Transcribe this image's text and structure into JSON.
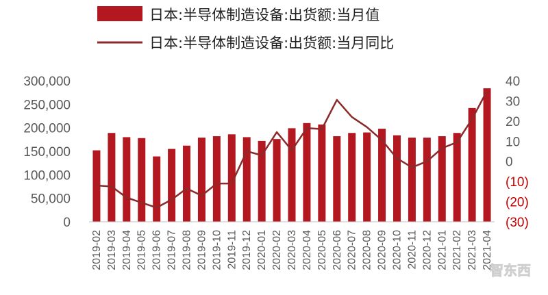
{
  "chart_data": {
    "type": "bar+line",
    "title": "",
    "legend": [
      {
        "label": "日本:半导体制造设备:出货额:当月值",
        "kind": "bar"
      },
      {
        "label": "日本:半导体制造设备:出货额:当月同比",
        "kind": "line"
      }
    ],
    "legend_position": "top",
    "categories": [
      "2019-02",
      "2019-03",
      "2019-04",
      "2019-05",
      "2019-06",
      "2019-07",
      "2019-08",
      "2019-09",
      "2019-10",
      "2019-11",
      "2019-12",
      "2020-01",
      "2020-02",
      "2020-03",
      "2020-04",
      "2020-05",
      "2020-06",
      "2020-07",
      "2020-08",
      "2020-09",
      "2020-10",
      "2020-11",
      "2020-12",
      "2021-01",
      "2021-02",
      "2021-03",
      "2021-04"
    ],
    "series": [
      {
        "name": "日本:半导体制造设备:出货额:当月值",
        "type": "bar",
        "axis": "left",
        "color": "#b3171f",
        "values": [
          152000,
          189000,
          180000,
          178000,
          139000,
          155000,
          162000,
          179000,
          182000,
          186000,
          180000,
          172000,
          176000,
          199000,
          210000,
          207000,
          182000,
          189000,
          190000,
          198000,
          184000,
          179000,
          179000,
          182000,
          189000,
          242000,
          284000
        ]
      },
      {
        "name": "日本:半导体制造设备:出货额:当月同比",
        "type": "line",
        "axis": "right",
        "color": "#8b2a2a",
        "values": [
          -12,
          -12.5,
          -18,
          -20.5,
          -23,
          -19,
          -13.5,
          -17,
          -11,
          -11,
          5,
          3,
          14.5,
          5.5,
          16.5,
          16,
          30.5,
          22,
          17,
          10.5,
          1.5,
          -3,
          0,
          6.5,
          9.5,
          21,
          35
        ]
      }
    ],
    "y_left": {
      "min": 0,
      "max": 300000,
      "ticks": [
        "0",
        "50,000",
        "100,000",
        "150,000",
        "200,000",
        "250,000",
        "300,000"
      ]
    },
    "y_right": {
      "min": -30,
      "max": 40,
      "ticks": [
        "(30)",
        "(20)",
        "(10)",
        "0",
        "10",
        "20",
        "30",
        "40"
      ],
      "negative_color": "#c00000",
      "positive_color": "#595959"
    },
    "grid": false,
    "watermark": "智东西"
  }
}
